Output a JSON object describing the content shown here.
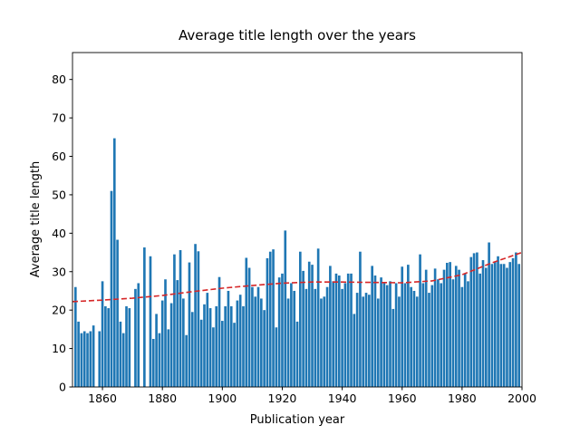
{
  "chart_data": {
    "type": "bar",
    "title": "Average title length over the years",
    "x_label": "Publication year",
    "y_label": "Average title length",
    "color": "#1f77b4",
    "x": [
      1851,
      1852,
      1853,
      1854,
      1855,
      1856,
      1857,
      1859,
      1860,
      1861,
      1862,
      1863,
      1864,
      1865,
      1866,
      1867,
      1868,
      1869,
      1871,
      1872,
      1874,
      1876,
      1877,
      1878,
      1879,
      1880,
      1881,
      1882,
      1883,
      1884,
      1885,
      1886,
      1887,
      1888,
      1889,
      1890,
      1891,
      1892,
      1893,
      1894,
      1895,
      1896,
      1897,
      1898,
      1899,
      1900,
      1901,
      1902,
      1903,
      1904,
      1905,
      1906,
      1907,
      1908,
      1909,
      1910,
      1911,
      1912,
      1913,
      1914,
      1915,
      1916,
      1917,
      1918,
      1919,
      1920,
      1921,
      1922,
      1923,
      1924,
      1925,
      1926,
      1927,
      1928,
      1929,
      1930,
      1931,
      1932,
      1933,
      1934,
      1935,
      1936,
      1937,
      1938,
      1939,
      1940,
      1941,
      1942,
      1943,
      1944,
      1945,
      1946,
      1947,
      1948,
      1949,
      1950,
      1951,
      1952,
      1953,
      1954,
      1955,
      1956,
      1957,
      1958,
      1959,
      1960,
      1961,
      1962,
      1963,
      1964,
      1965,
      1966,
      1967,
      1968,
      1969,
      1970,
      1971,
      1972,
      1973,
      1974,
      1975,
      1976,
      1977,
      1978,
      1979,
      1980,
      1981,
      1982,
      1983,
      1984,
      1985,
      1986,
      1987,
      1988,
      1989,
      1990,
      1991,
      1992,
      1993,
      1994,
      1995,
      1996,
      1997,
      1998,
      1999
    ],
    "values": [
      26,
      17,
      14,
      14.5,
      14,
      14.5,
      16,
      14.5,
      27.5,
      21,
      20.5,
      51,
      64.7,
      38.3,
      17,
      14,
      21,
      20.5,
      25.5,
      27,
      36.3,
      34,
      12.5,
      19,
      14,
      22.5,
      28,
      15,
      21.8,
      34.5,
      27.8,
      35.6,
      23,
      13.5,
      32.4,
      19.5,
      37.2,
      35.3,
      17.5,
      21.5,
      24.5,
      20.5,
      15.5,
      21,
      28.6,
      17.2,
      21,
      25,
      21,
      16.7,
      22.5,
      24,
      21,
      33.6,
      31,
      26,
      23.5,
      26,
      23,
      20,
      33.5,
      35.2,
      35.8,
      15.5,
      28.5,
      29.5,
      40.7,
      23,
      27,
      25,
      17,
      35.2,
      30.2,
      25.5,
      32.6,
      31.8,
      25.5,
      36,
      23,
      23.5,
      26,
      31.5,
      27.5,
      29.5,
      29,
      25.5,
      27,
      29.5,
      29.5,
      19,
      24.5,
      35.2,
      23.5,
      24.5,
      24,
      31.5,
      29,
      23,
      28.5,
      27,
      26.5,
      27.5,
      20.3,
      27,
      23.5,
      31.3,
      27,
      31.8,
      26,
      25,
      23.5,
      34.5,
      27,
      30.5,
      24.5,
      26.5,
      30.8,
      28,
      27,
      30.5,
      32.3,
      32.5,
      28,
      31.5,
      30.5,
      26,
      29.5,
      27.5,
      33.8,
      34.8,
      35,
      29.5,
      33,
      31,
      37.6,
      32,
      32.5,
      34,
      32,
      32,
      31,
      32.5,
      33.5,
      35,
      32
    ],
    "trend": {
      "color": "#d62728",
      "x": [
        1850,
        1860,
        1870,
        1880,
        1890,
        1900,
        1910,
        1920,
        1930,
        1940,
        1950,
        1960,
        1970,
        1980,
        1990,
        2000
      ],
      "values": [
        22.2,
        22.6,
        23.1,
        23.8,
        24.8,
        25.7,
        26.4,
        27,
        27.3,
        27.3,
        27.2,
        27.1,
        27.6,
        29.2,
        32.3,
        35
      ]
    },
    "xlim": [
      1850,
      2000
    ],
    "ylim": [
      0,
      87
    ],
    "xticks": [
      1860,
      1880,
      1900,
      1920,
      1940,
      1960,
      1980,
      2000
    ],
    "yticks": [
      0,
      10,
      20,
      30,
      40,
      50,
      60,
      70,
      80
    ]
  }
}
